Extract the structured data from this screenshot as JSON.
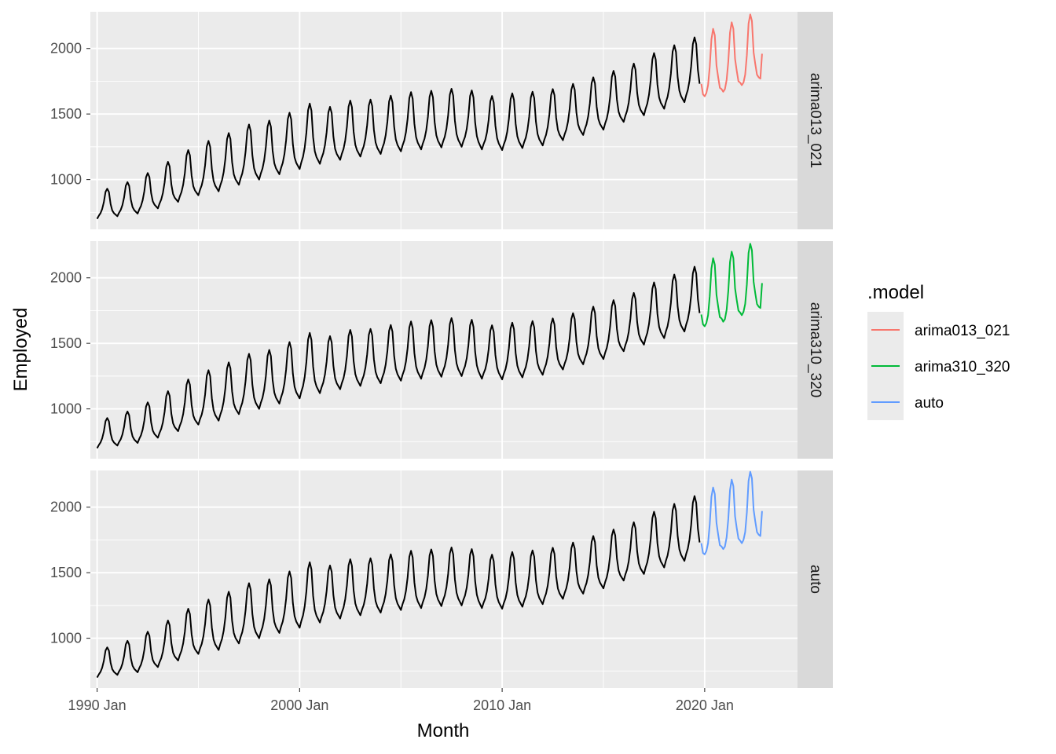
{
  "chart_data": {
    "type": "line",
    "facet_by": ".model",
    "xlabel": "Month",
    "ylabel": "Employed",
    "x_ticks": [
      "1990 Jan",
      "2000 Jan",
      "2010 Jan",
      "2020 Jan"
    ],
    "y_ticks": [
      1000,
      1500,
      2000
    ],
    "xlim": [
      "1989-09",
      "2024-08"
    ],
    "ylim": [
      620,
      2280
    ],
    "grid": true,
    "legend": {
      "title": ".model",
      "position": "right",
      "entries": [
        {
          "name": "arima013_021",
          "color": "#F8766D"
        },
        {
          "name": "arima310_320",
          "color": "#00BA38"
        },
        {
          "name": "auto",
          "color": "#619CFF"
        }
      ]
    },
    "history": {
      "start": "1990-01",
      "end": "2019-10",
      "color": "#000000",
      "annual_trough": [
        [
          "1990",
          700
        ],
        [
          "1991",
          720
        ],
        [
          "1992",
          740
        ],
        [
          "1993",
          780
        ],
        [
          "1994",
          830
        ],
        [
          "1995",
          880
        ],
        [
          "1996",
          910
        ],
        [
          "1997",
          960
        ],
        [
          "1998",
          1000
        ],
        [
          "1999",
          1040
        ],
        [
          "2000",
          1080
        ],
        [
          "2001",
          1120
        ],
        [
          "2002",
          1150
        ],
        [
          "2003",
          1175
        ],
        [
          "2004",
          1195
        ],
        [
          "2005",
          1215
        ],
        [
          "2006",
          1230
        ],
        [
          "2007",
          1245
        ],
        [
          "2008",
          1250
        ],
        [
          "2009",
          1230
        ],
        [
          "2010",
          1225
        ],
        [
          "2011",
          1240
        ],
        [
          "2012",
          1260
        ],
        [
          "2013",
          1300
        ],
        [
          "2014",
          1340
        ],
        [
          "2015",
          1380
        ],
        [
          "2016",
          1440
        ],
        [
          "2017",
          1490
        ],
        [
          "2018",
          1540
        ],
        [
          "2019",
          1590
        ]
      ],
      "annual_peak": [
        [
          "1990",
          920
        ],
        [
          "1991",
          970
        ],
        [
          "1992",
          1030
        ],
        [
          "1993",
          1110
        ],
        [
          "1994",
          1200
        ],
        [
          "1995",
          1280
        ],
        [
          "1996",
          1330
        ],
        [
          "1997",
          1400
        ],
        [
          "1998",
          1430
        ],
        [
          "1999",
          1490
        ],
        [
          "2000",
          1560
        ],
        [
          "2001",
          1540
        ],
        [
          "2002",
          1590
        ],
        [
          "2003",
          1600
        ],
        [
          "2004",
          1630
        ],
        [
          "2005",
          1660
        ],
        [
          "2006",
          1670
        ],
        [
          "2007",
          1690
        ],
        [
          "2008",
          1690
        ],
        [
          "2009",
          1640
        ],
        [
          "2010",
          1650
        ],
        [
          "2011",
          1660
        ],
        [
          "2012",
          1670
        ],
        [
          "2013",
          1710
        ],
        [
          "2014",
          1760
        ],
        [
          "2015",
          1800
        ],
        [
          "2016",
          1860
        ],
        [
          "2017",
          1940
        ],
        [
          "2018",
          2000
        ],
        [
          "2019",
          2060
        ]
      ]
    },
    "panels": [
      {
        "strip": "arima013_021",
        "forecast": {
          "color": "#F8766D",
          "x": [
            "2019-11",
            "2019-12",
            "2020-01",
            "2020-02",
            "2020-03",
            "2020-04",
            "2020-05",
            "2020-06",
            "2020-07",
            "2020-08",
            "2020-09",
            "2020-10",
            "2020-11",
            "2020-12",
            "2021-01",
            "2021-02",
            "2021-03",
            "2021-04",
            "2021-05",
            "2021-06",
            "2021-07",
            "2021-08",
            "2021-09",
            "2021-10",
            "2021-11",
            "2021-12",
            "2022-01",
            "2022-02",
            "2022-03",
            "2022-04",
            "2022-05",
            "2022-06",
            "2022-07",
            "2022-08",
            "2022-09",
            "2022-10",
            "2022-11"
          ],
          "y": [
            1730,
            1650,
            1635,
            1660,
            1720,
            1860,
            2070,
            2150,
            2100,
            1870,
            1780,
            1700,
            1690,
            1670,
            1690,
            1760,
            1900,
            2120,
            2200,
            2150,
            1920,
            1830,
            1750,
            1740,
            1720,
            1740,
            1800,
            1950,
            2190,
            2260,
            2210,
            1970,
            1880,
            1800,
            1780,
            1770,
            1960
          ]
        }
      },
      {
        "strip": "arima310_320",
        "forecast": {
          "color": "#00BA38",
          "x": [
            "2019-11",
            "2019-12",
            "2020-01",
            "2020-02",
            "2020-03",
            "2020-04",
            "2020-05",
            "2020-06",
            "2020-07",
            "2020-08",
            "2020-09",
            "2020-10",
            "2020-11",
            "2020-12",
            "2021-01",
            "2021-02",
            "2021-03",
            "2021-04",
            "2021-05",
            "2021-06",
            "2021-07",
            "2021-08",
            "2021-09",
            "2021-10",
            "2021-11",
            "2021-12",
            "2022-01",
            "2022-02",
            "2022-03",
            "2022-04",
            "2022-05",
            "2022-06",
            "2022-07",
            "2022-08",
            "2022-09",
            "2022-10",
            "2022-11"
          ],
          "y": [
            1720,
            1645,
            1630,
            1655,
            1715,
            1860,
            2070,
            2150,
            2100,
            1870,
            1780,
            1700,
            1690,
            1665,
            1685,
            1755,
            1900,
            2120,
            2200,
            2150,
            1920,
            1830,
            1750,
            1735,
            1715,
            1740,
            1800,
            1950,
            2190,
            2260,
            2210,
            1970,
            1880,
            1800,
            1780,
            1770,
            1960
          ]
        }
      },
      {
        "strip": "auto",
        "forecast": {
          "color": "#619CFF",
          "x": [
            "2019-11",
            "2019-12",
            "2020-01",
            "2020-02",
            "2020-03",
            "2020-04",
            "2020-05",
            "2020-06",
            "2020-07",
            "2020-08",
            "2020-09",
            "2020-10",
            "2020-11",
            "2020-12",
            "2021-01",
            "2021-02",
            "2021-03",
            "2021-04",
            "2021-05",
            "2021-06",
            "2021-07",
            "2021-08",
            "2021-09",
            "2021-10",
            "2021-11",
            "2021-12",
            "2022-01",
            "2022-02",
            "2022-03",
            "2022-04",
            "2022-05",
            "2022-06",
            "2022-07",
            "2022-08",
            "2022-09",
            "2022-10",
            "2022-11"
          ],
          "y": [
            1725,
            1650,
            1640,
            1665,
            1725,
            1870,
            2080,
            2150,
            2100,
            1880,
            1790,
            1710,
            1700,
            1680,
            1700,
            1770,
            1910,
            2130,
            2210,
            2160,
            1930,
            1840,
            1760,
            1745,
            1725,
            1750,
            1810,
            1960,
            2200,
            2270,
            2220,
            1980,
            1890,
            1810,
            1790,
            1780,
            1970
          ]
        }
      }
    ]
  }
}
